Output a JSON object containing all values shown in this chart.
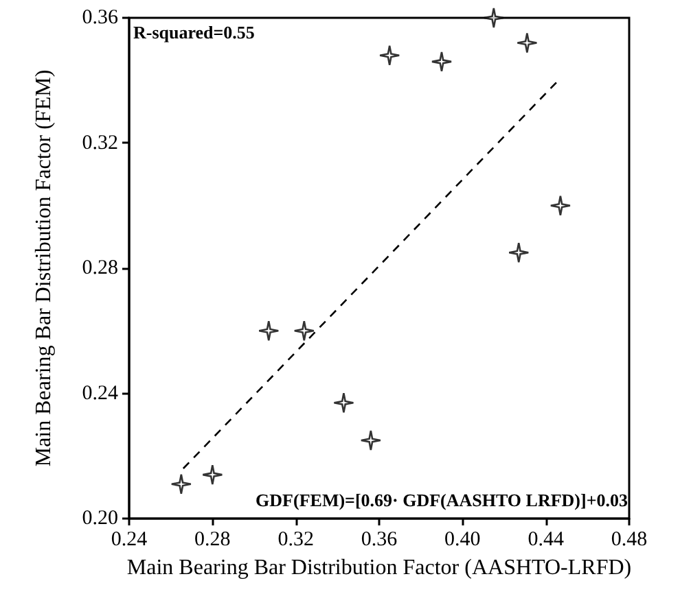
{
  "chart_data": {
    "type": "scatter",
    "xlabel": "Main Bearing Bar Distribution Factor (AASHTO-LRFD)",
    "ylabel": "Main Bearing Bar Distribution Factor (FEM)",
    "x": [
      0.265,
      0.28,
      0.307,
      0.324,
      0.343,
      0.356,
      0.365,
      0.39,
      0.415,
      0.431,
      0.427,
      0.447
    ],
    "series": [
      {
        "color": "#000000",
        "marker": "star",
        "values": [
          0.211,
          0.214,
          0.26,
          0.26,
          0.237,
          0.225,
          0.348,
          0.346,
          0.36,
          0.352,
          0.285,
          0.3
        ]
      },
      {
        "type": "line",
        "color": "#000000",
        "line_style": "dashed",
        "marker": "none",
        "x": [
          0.266,
          0.446
        ],
        "values": [
          0.216,
          0.34
        ]
      }
    ],
    "xlim": [
      0.24,
      0.48
    ],
    "xticks": [
      {
        "value": 0.24,
        "label": "0.24"
      },
      {
        "value": 0.28,
        "label": "0.28"
      },
      {
        "value": 0.32,
        "label": "0.32"
      },
      {
        "value": 0.36,
        "label": "0.36"
      },
      {
        "value": 0.4,
        "label": "0.40"
      },
      {
        "value": 0.44,
        "label": "0.44"
      },
      {
        "value": 0.48,
        "label": "0.48"
      }
    ],
    "ylim": [
      0.2,
      0.36
    ],
    "yticks": [
      {
        "value": 0.2,
        "label": "0.20"
      },
      {
        "value": 0.24,
        "label": "0.24"
      },
      {
        "value": 0.28,
        "label": "0.28"
      },
      {
        "value": 0.32,
        "label": "0.32"
      },
      {
        "value": 0.36,
        "label": "0.36"
      }
    ],
    "annotations": [
      "R-squared=0.55",
      "GDF(FEM)=[0.69· GDF(AASHTO LRFD)]+0.03"
    ],
    "grid": false
  }
}
